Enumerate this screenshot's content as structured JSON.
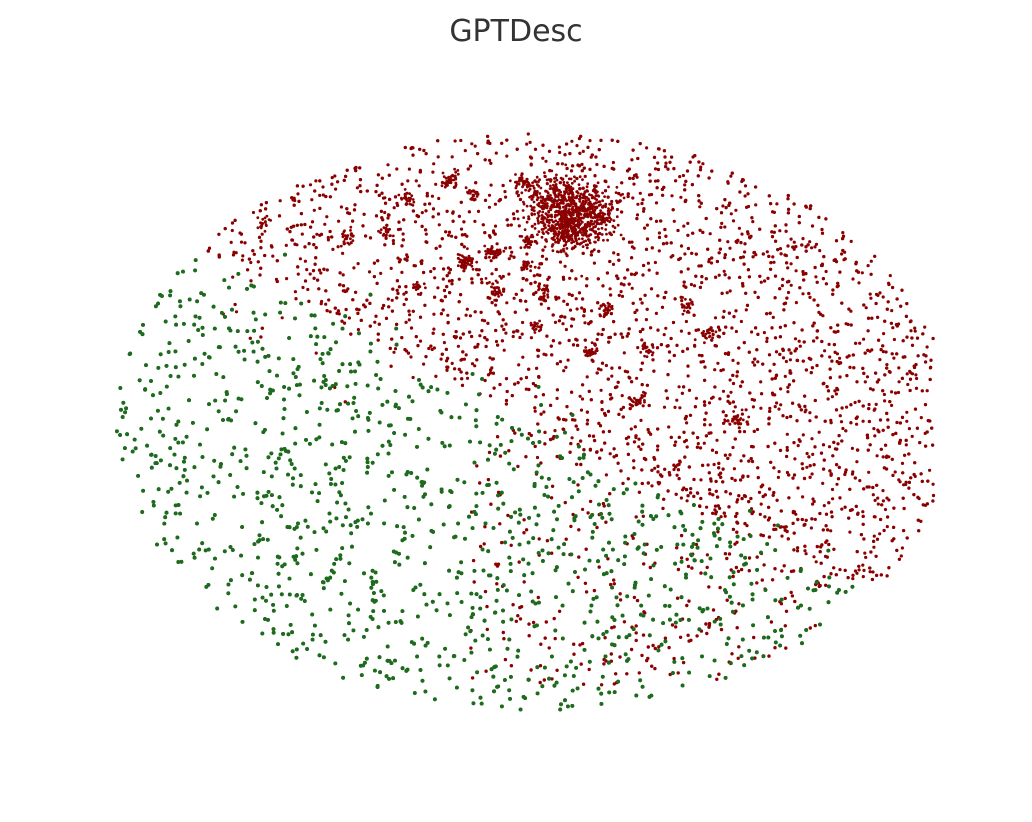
{
  "chart_data": {
    "type": "scatter",
    "title": "GPTDesc",
    "xlabel": "",
    "ylabel": "",
    "axes_visible": false,
    "grid": false,
    "legend": "none",
    "xlim": [
      -50,
      50
    ],
    "ylim": [
      -40,
      40
    ],
    "series": [
      {
        "color": "#8b0000",
        "point_count_approx": 7000,
        "region": {
          "center": [
            6,
            12
          ],
          "radius": [
            40,
            30
          ]
        },
        "dense_clusters": [
          {
            "x": 4.7,
            "y": 26.4,
            "spread": 1.8,
            "n": 420
          },
          {
            "x": 8.1,
            "y": 25.3,
            "spread": 1.5,
            "n": 260
          },
          {
            "x": 5.8,
            "y": 23.5,
            "spread": 1.3,
            "n": 200
          },
          {
            "x": 0.7,
            "y": 28.8,
            "spread": 0.5,
            "n": 40
          },
          {
            "x": -7.2,
            "y": 29.5,
            "spread": 0.5,
            "n": 40
          },
          {
            "x": -5.4,
            "y": 19.8,
            "spread": 0.6,
            "n": 45
          },
          {
            "x": -2.6,
            "y": 20.9,
            "spread": 0.5,
            "n": 35
          },
          {
            "x": 1.4,
            "y": 22.2,
            "spread": 0.5,
            "n": 35
          },
          {
            "x": -2.3,
            "y": 16.6,
            "spread": 0.5,
            "n": 30
          },
          {
            "x": 3.1,
            "y": 16.3,
            "spread": 0.4,
            "n": 25
          },
          {
            "x": 1.2,
            "y": 19.3,
            "spread": 0.4,
            "n": 25
          },
          {
            "x": 8.2,
            "y": 9.3,
            "spread": 0.4,
            "n": 25
          },
          {
            "x": 13.4,
            "y": 3.4,
            "spread": 0.4,
            "n": 25
          },
          {
            "x": 24.1,
            "y": 1.2,
            "spread": 0.4,
            "n": 25
          },
          {
            "x": -18.6,
            "y": 22.7,
            "spread": 0.4,
            "n": 25
          },
          {
            "x": -14.3,
            "y": 23.1,
            "spread": 0.4,
            "n": 25
          },
          {
            "x": -11.9,
            "y": 27.3,
            "spread": 0.4,
            "n": 25
          },
          {
            "x": -27.7,
            "y": 24.5,
            "spread": 0.4,
            "n": 20
          },
          {
            "x": -10.8,
            "y": 16.8,
            "spread": 0.4,
            "n": 20
          },
          {
            "x": -4.8,
            "y": 27.9,
            "spread": 0.4,
            "n": 20
          },
          {
            "x": 2.3,
            "y": 12.2,
            "spread": 0.4,
            "n": 20
          },
          {
            "x": 10.0,
            "y": 14.1,
            "spread": 0.4,
            "n": 20
          },
          {
            "x": 14.4,
            "y": 9.5,
            "spread": 0.4,
            "n": 20
          },
          {
            "x": 18.7,
            "y": 14.6,
            "spread": 0.4,
            "n": 20
          },
          {
            "x": 21.1,
            "y": 11.3,
            "spread": 0.4,
            "n": 20
          }
        ]
      },
      {
        "color": "#1e6b1e",
        "point_count_approx": 4500,
        "region": {
          "center": [
            -10,
            -10
          ],
          "radius": [
            38,
            27
          ]
        }
      }
    ]
  }
}
